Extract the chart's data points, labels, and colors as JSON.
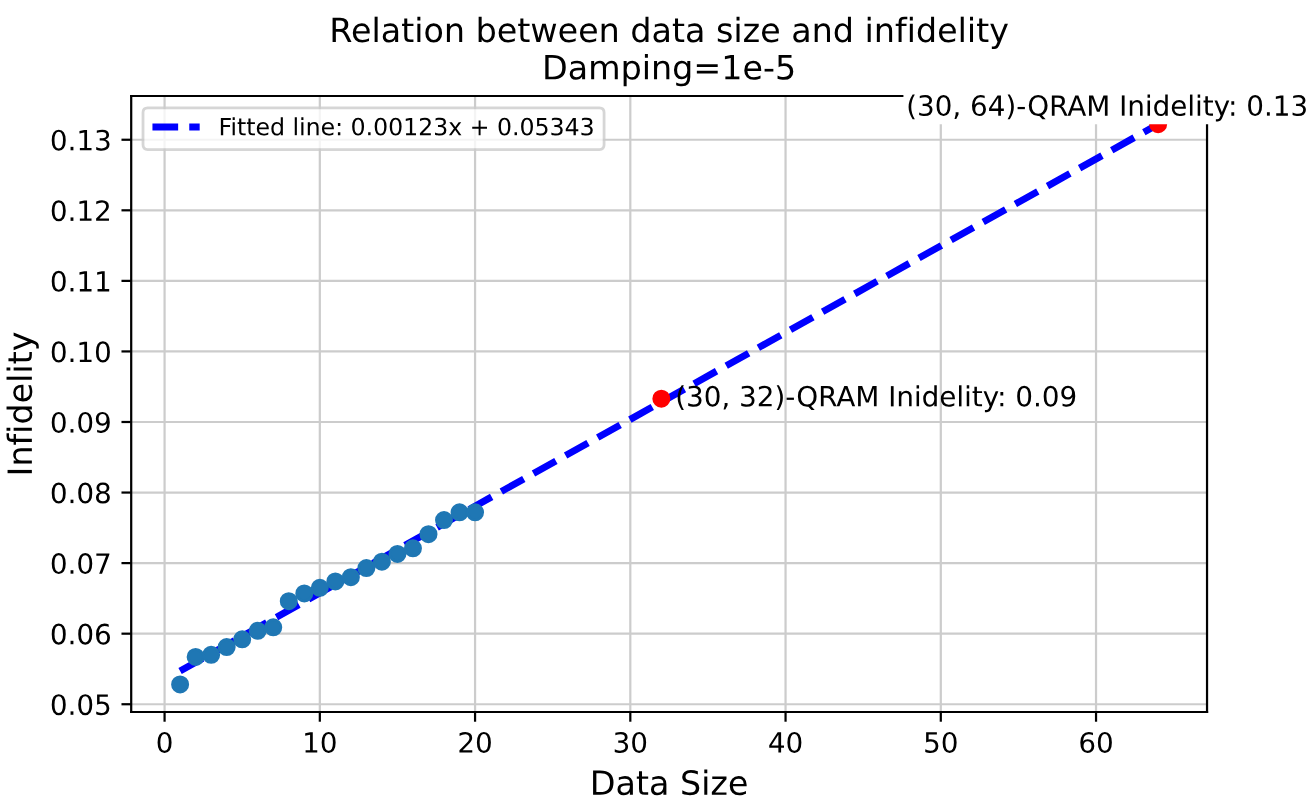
{
  "chart_data": {
    "type": "scatter",
    "title": "Relation between data size and infidelity",
    "subtitle": "Damping=1e-5",
    "xlabel": "Data Size",
    "ylabel": "Infidelity",
    "series": [
      {
        "color": "#1f77b4",
        "x": [
          1,
          2,
          3,
          4,
          5,
          6,
          7,
          8,
          9,
          10,
          11,
          12,
          13,
          14,
          15,
          16,
          17,
          18,
          19,
          20
        ],
        "values": [
          0.0528,
          0.0567,
          0.057,
          0.0581,
          0.0592,
          0.0604,
          0.0609,
          0.0646,
          0.0657,
          0.0665,
          0.0674,
          0.068,
          0.0693,
          0.0702,
          0.0713,
          0.0721,
          0.0741,
          0.0761,
          0.0772,
          0.0772
        ]
      },
      {
        "type": "line",
        "name": "Fitted line: 0.00123x + 0.05343",
        "color": "#0000ff",
        "line_style": "dashed",
        "marker": "none",
        "x": [
          1,
          64
        ],
        "values": [
          0.0547,
          0.1322
        ]
      },
      {
        "color": "#ff0000",
        "x": [
          32,
          64
        ],
        "values": [
          0.0933,
          0.1322
        ]
      }
    ],
    "annotations": [
      {
        "text": "(30, 32)-QRAM Inidelity: 0.09",
        "x": 32,
        "y": 0.0933
      },
      {
        "text": "(30, 64)-QRAM Inidelity: 0.13",
        "x": 64,
        "y": 0.1322
      }
    ],
    "xlim": [
      -2.15,
      67.15
    ],
    "ylim": [
      0.0489,
      0.1362
    ],
    "xticks": [
      0,
      10,
      20,
      30,
      40,
      50,
      60
    ],
    "yticks": [
      0.05,
      0.06,
      0.07,
      0.08,
      0.09,
      {
        "value": 0.1,
        "label": "0.10"
      },
      0.11,
      0.12,
      0.13
    ],
    "grid": true,
    "legend": "top left",
    "marker": "circle"
  }
}
